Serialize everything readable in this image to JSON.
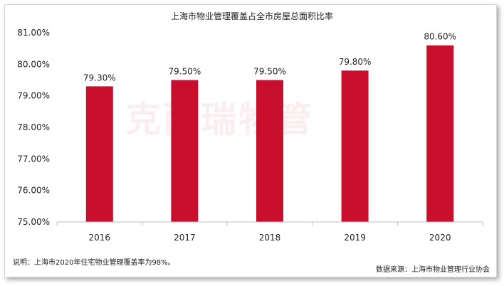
{
  "watermark": "克而瑞物管",
  "note": "说明：上海市2020年住宅物业管理覆盖率为98%。",
  "source": "数据来源：上海市物业管理行业协会",
  "colors": {
    "bar": "#c8102e",
    "axis": "#bfbfbf",
    "text": "#222222"
  },
  "chart_data": {
    "type": "bar",
    "title": "上海市物业管理覆盖占全市房屋总面积比率",
    "xlabel": "",
    "ylabel": "",
    "categories": [
      "2016",
      "2017",
      "2018",
      "2019",
      "2020"
    ],
    "values": [
      79.3,
      79.5,
      79.5,
      79.8,
      80.6
    ],
    "data_labels": [
      "79.30%",
      "79.50%",
      "79.50%",
      "79.80%",
      "80.60%"
    ],
    "ylim": [
      75,
      81
    ],
    "yticks": [
      75,
      76,
      77,
      78,
      79,
      80,
      81
    ],
    "ytick_labels": [
      "75.00%",
      "76.00%",
      "77.00%",
      "78.00%",
      "79.00%",
      "80.00%",
      "81.00%"
    ],
    "grid": false,
    "legend": "none"
  }
}
